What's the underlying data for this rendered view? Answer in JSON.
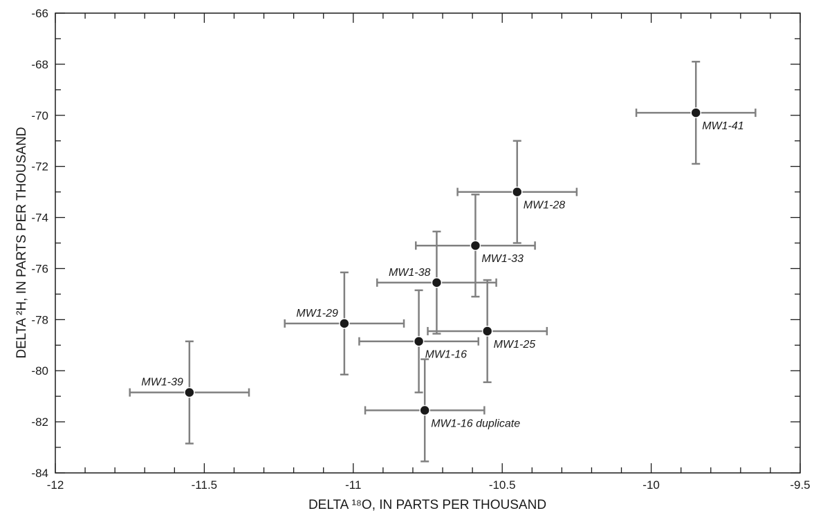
{
  "chart_data": {
    "type": "scatter",
    "xlabel": "DELTA ¹⁸O, IN PARTS PER THOUSAND",
    "ylabel": "DELTA ²H, IN PARTS PER THOUSAND",
    "xlim": [
      -12,
      -9.5
    ],
    "ylim": [
      -84,
      -66
    ],
    "xticks": [
      -12,
      -11.5,
      -11,
      -10.5,
      -10,
      -9.5
    ],
    "xtick_labels": [
      "-12",
      "-11.5",
      "-11",
      "-10.5",
      "-10",
      "-9.5"
    ],
    "yticks": [
      -84,
      -82,
      -80,
      -78,
      -76,
      -74,
      -72,
      -70,
      -68,
      -66
    ],
    "ytick_labels": [
      "-84",
      "-82",
      "-80",
      "-78",
      "-76",
      "-74",
      "-72",
      "-70",
      "-68",
      "-66"
    ],
    "grid": false,
    "legend": "none",
    "errorbar_x": 0.2,
    "errorbar_y": 2,
    "point_color": "#1a1a1a",
    "errorbar_color": "#808080",
    "points": [
      {
        "label": "MW1-41",
        "x": -9.85,
        "y": -69.9,
        "label_pos": "below-right"
      },
      {
        "label": "MW1-28",
        "x": -10.45,
        "y": -73.0,
        "label_pos": "below-right"
      },
      {
        "label": "MW1-33",
        "x": -10.59,
        "y": -75.1,
        "label_pos": "below-right"
      },
      {
        "label": "MW1-38",
        "x": -10.72,
        "y": -76.55,
        "label_pos": "above-left"
      },
      {
        "label": "MW1-29",
        "x": -11.03,
        "y": -78.15,
        "label_pos": "above-left"
      },
      {
        "label": "MW1-16",
        "x": -10.78,
        "y": -78.85,
        "label_pos": "below-right"
      },
      {
        "label": "MW1-25",
        "x": -10.55,
        "y": -78.45,
        "label_pos": "below-right"
      },
      {
        "label": "MW1-39",
        "x": -11.55,
        "y": -80.85,
        "label_pos": "above-left"
      },
      {
        "label": "MW1-16 duplicate",
        "x": -10.76,
        "y": -81.55,
        "label_pos": "below-right"
      }
    ]
  }
}
